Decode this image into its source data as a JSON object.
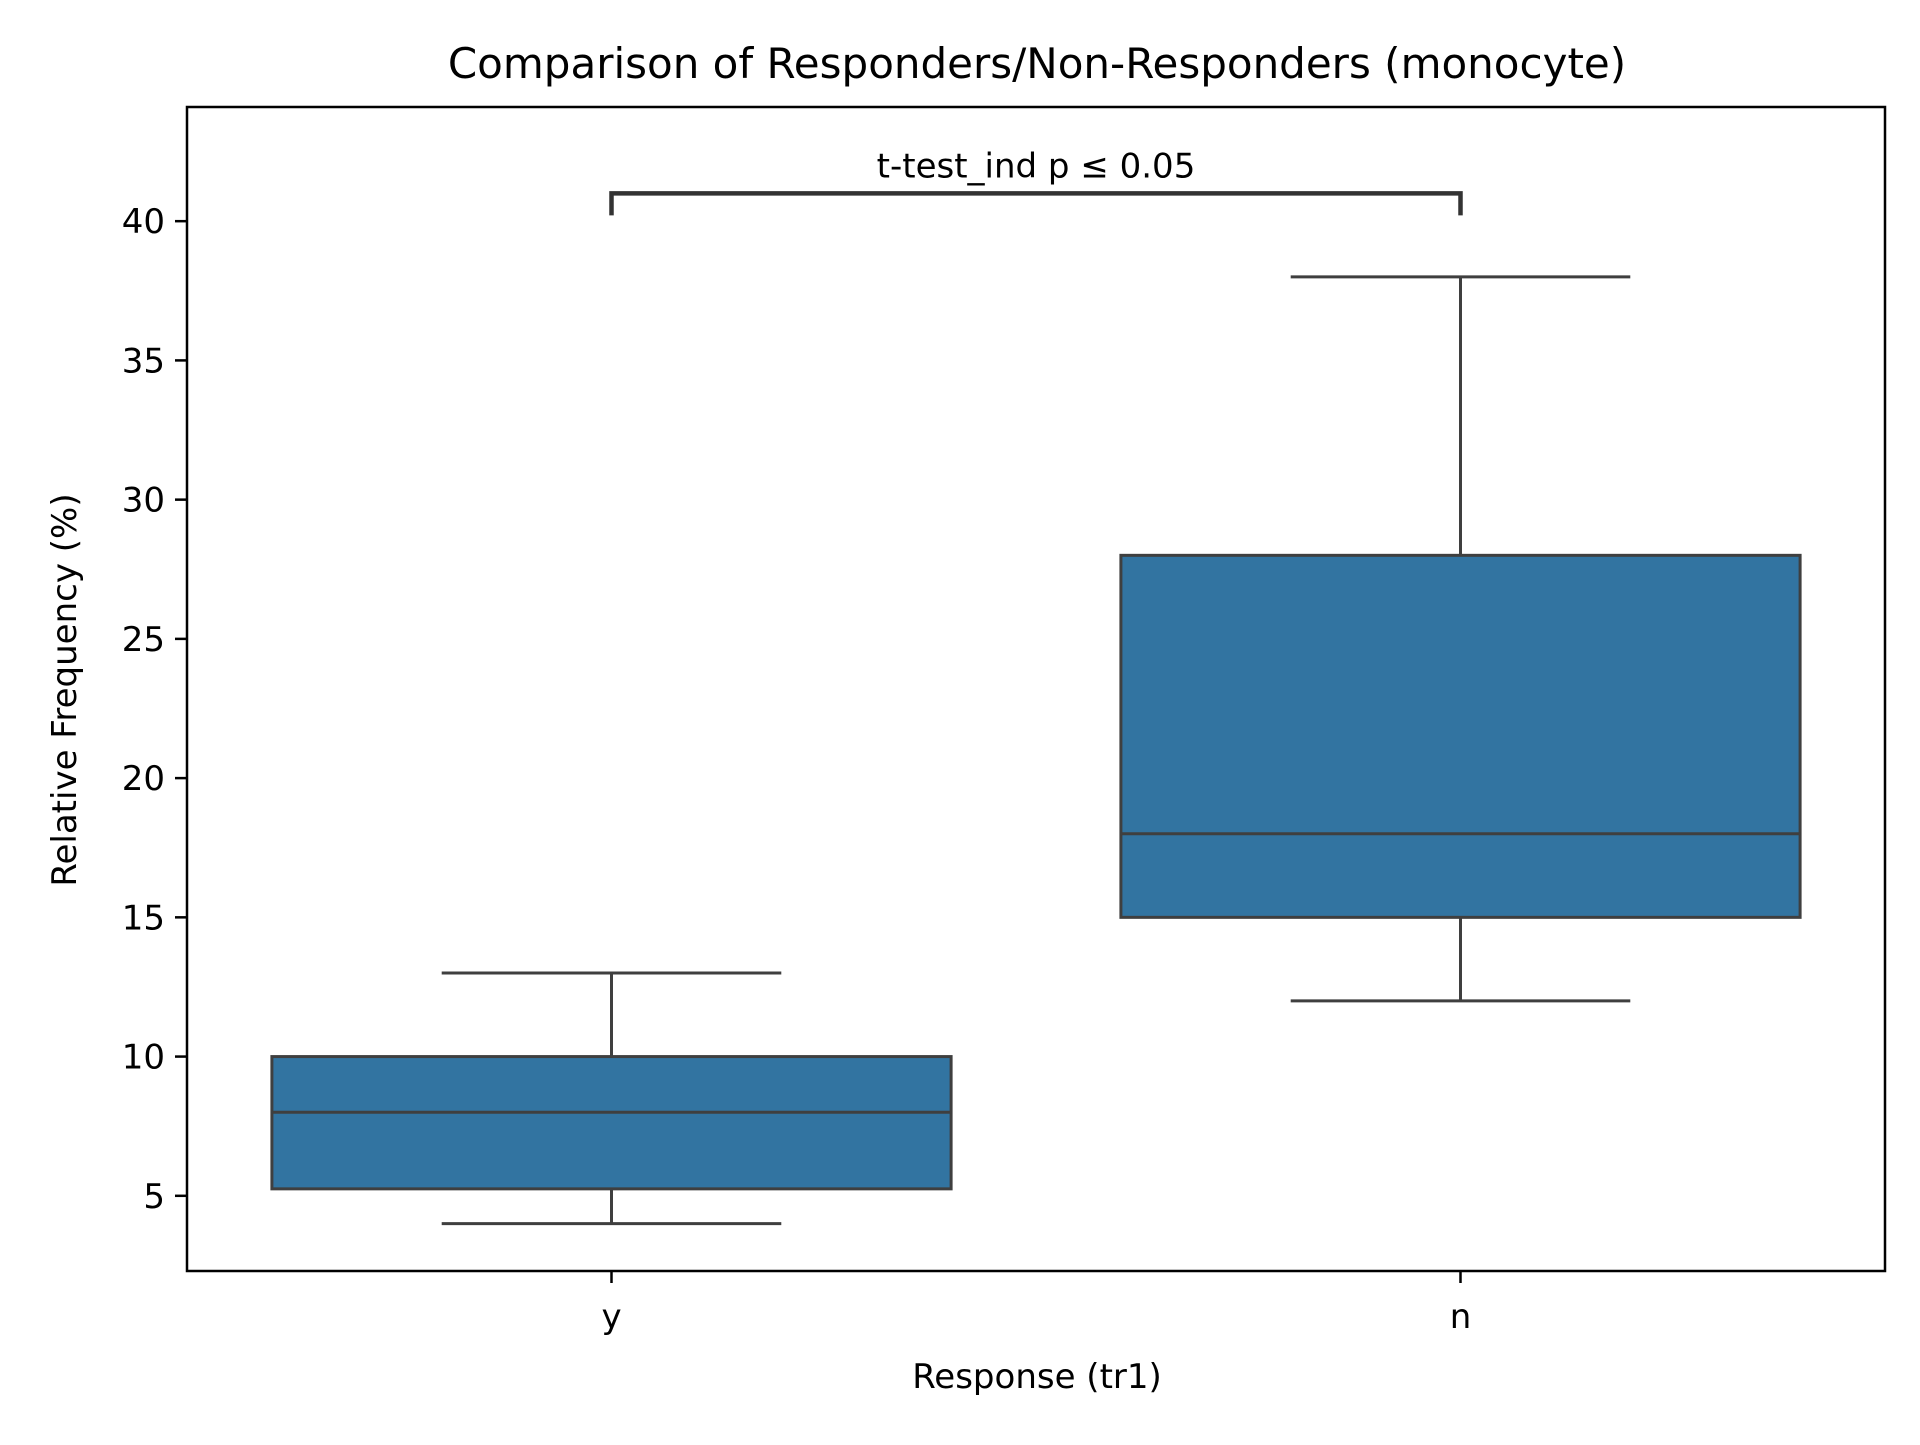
{
  "chart_data": {
    "type": "box",
    "title": "Comparison of Responders/Non-Responders (monocyte)",
    "xlabel": "Response (tr1)",
    "ylabel": "Relative Frequency (%)",
    "categories": [
      "y",
      "n"
    ],
    "boxes": [
      {
        "category": "y",
        "whisker_low": 4,
        "q1": 5.25,
        "median": 8,
        "q3": 10,
        "whisker_high": 13
      },
      {
        "category": "n",
        "whisker_low": 12,
        "q1": 15,
        "median": 18,
        "q3": 28,
        "whisker_high": 38
      }
    ],
    "ylim": [
      2.3,
      44.1
    ],
    "yticks": [
      5,
      10,
      15,
      20,
      25,
      30,
      35,
      40
    ],
    "ytick_labels": [
      "5",
      "10",
      "15",
      "20",
      "25",
      "30",
      "35",
      "40"
    ],
    "grid": false,
    "annotation": {
      "text": "t-test_ind p ≤ 0.05",
      "from": "y",
      "to": "n",
      "y": 41
    },
    "colors": {
      "box_fill": "#3274a1",
      "box_edge": "#3f3f3f",
      "axis": "#000000"
    }
  }
}
